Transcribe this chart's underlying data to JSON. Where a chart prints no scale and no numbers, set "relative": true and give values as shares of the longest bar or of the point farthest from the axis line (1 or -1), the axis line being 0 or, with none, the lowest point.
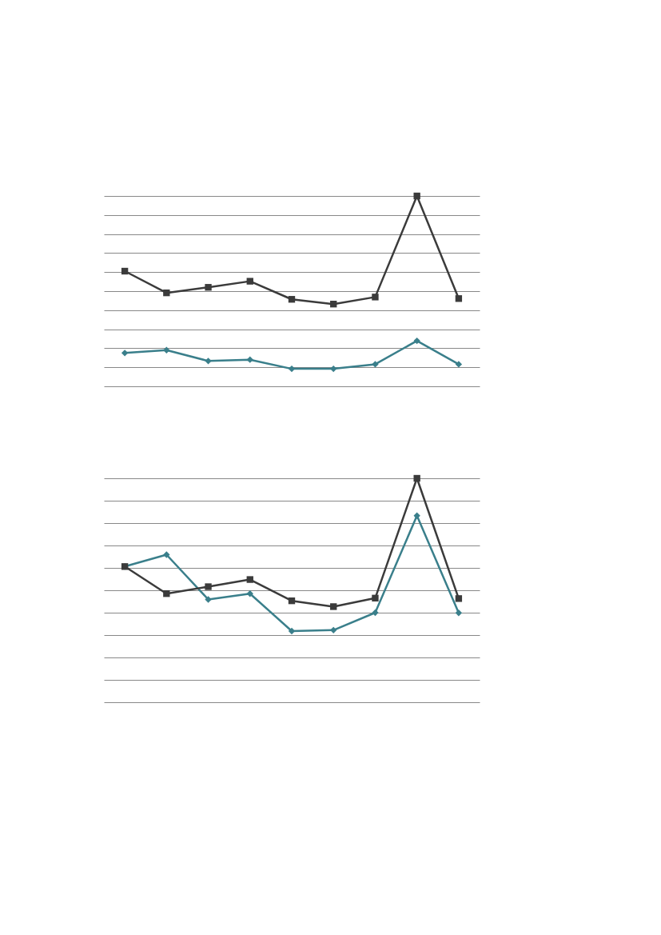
{
  "chart_data": [
    {
      "type": "line",
      "relative": true,
      "categories": [
        null,
        null,
        null,
        null,
        null,
        null,
        null,
        null,
        null
      ],
      "grid": "y",
      "tick_labels": false,
      "series": [
        {
          "color": "#3a7f8b",
          "marker": "diamond",
          "values": [
            0.175,
            0.19,
            0.133,
            0.14,
            0.092,
            0.092,
            0.116,
            0.239,
            0.116
          ]
        },
        {
          "color": "#3b3b3b",
          "marker": "square",
          "values": [
            0.605,
            0.491,
            0.52,
            0.552,
            0.457,
            0.432,
            0.469,
            1,
            0.461
          ]
        }
      ]
    },
    {
      "type": "line",
      "relative": true,
      "categories": [
        null,
        null,
        null,
        null,
        null,
        null,
        null,
        null,
        null
      ],
      "grid": "y",
      "tick_labels": false,
      "series": [
        {
          "color": "#3a7f8b",
          "marker": "diamond",
          "values": [
            0.606,
            0.659,
            0.459,
            0.485,
            0.318,
            0.322,
            0.4,
            0.833,
            0.399
          ]
        },
        {
          "color": "#3b3b3b",
          "marker": "square",
          "values": [
            0.606,
            0.485,
            0.516,
            0.548,
            0.453,
            0.427,
            0.465,
            1,
            0.463
          ]
        }
      ]
    }
  ]
}
